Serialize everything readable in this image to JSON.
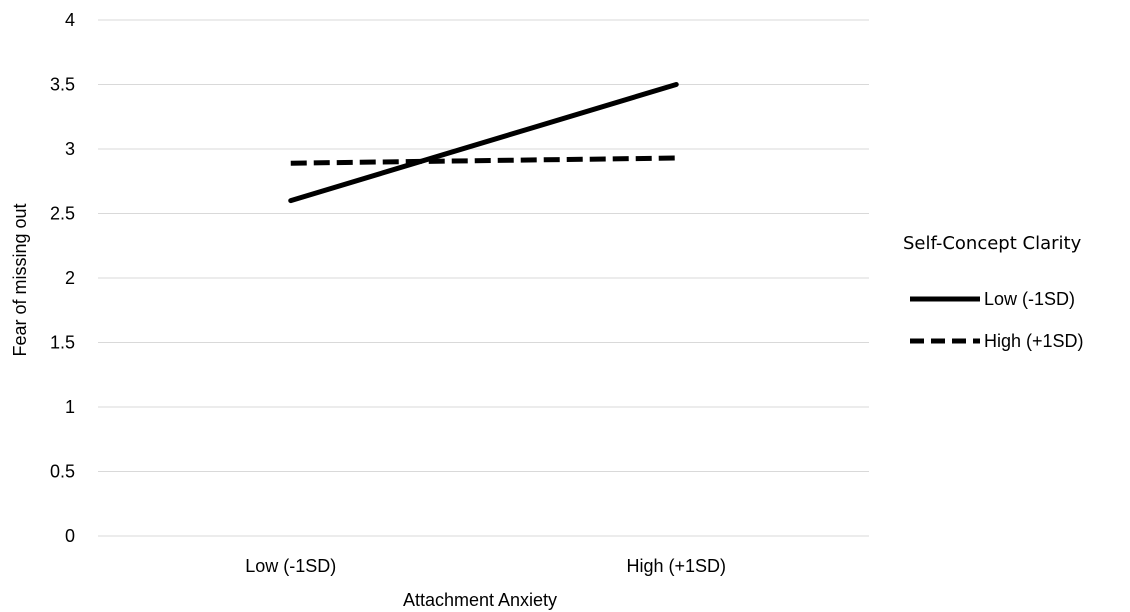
{
  "chart_data": {
    "type": "line",
    "categories": [
      "Low (-1SD)",
      "High (+1SD)"
    ],
    "series": [
      {
        "name": "Low (-1SD)",
        "values": [
          2.6,
          3.5
        ],
        "line_style": "solid",
        "color": "#000000"
      },
      {
        "name": "High (+1SD)",
        "values": [
          2.89,
          2.93
        ],
        "line_style": "dashed",
        "color": "#000000"
      }
    ],
    "title": "",
    "xlabel": "Attachment Anxiety",
    "ylabel": "Fear of missing out",
    "ylim": [
      0,
      4
    ],
    "yticks": [
      "0",
      "0.5",
      "1",
      "1.5",
      "2",
      "2.5",
      "3",
      "3.5",
      "4"
    ],
    "grid": true,
    "legend": {
      "title": "Self-Concept Clarity",
      "position": "right"
    }
  }
}
